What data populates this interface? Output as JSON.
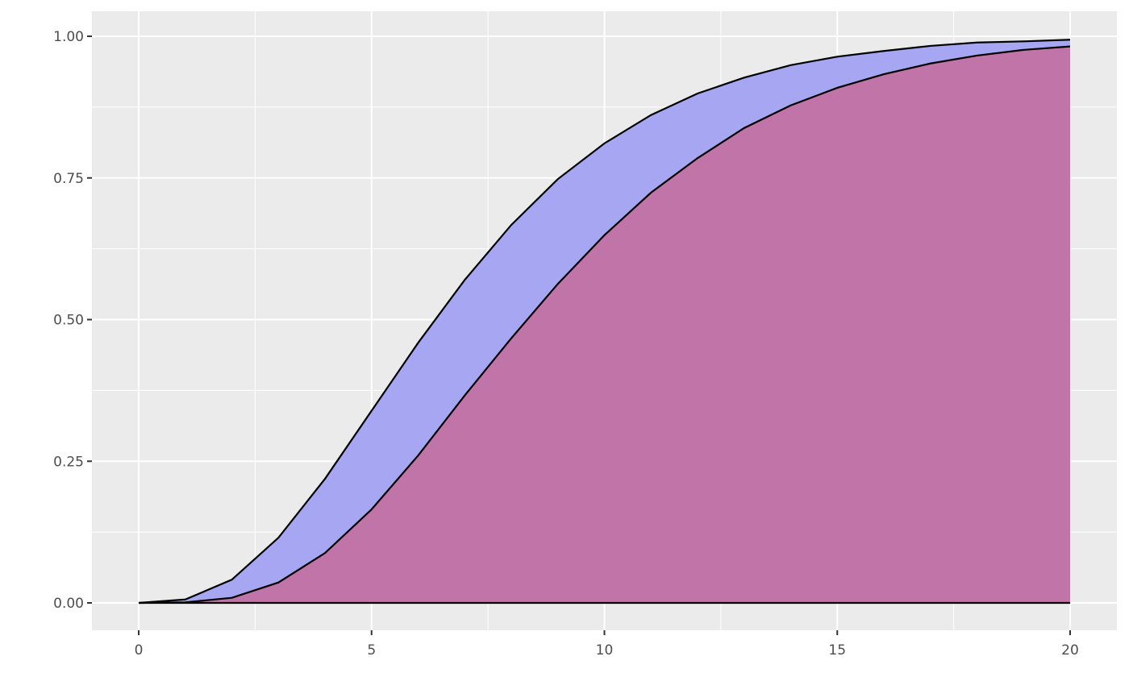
{
  "chart_data": {
    "type": "area",
    "title": "",
    "xlabel": "",
    "ylabel": "",
    "xlim": [
      -1,
      21
    ],
    "ylim": [
      -0.05,
      1.04
    ],
    "grid": true,
    "x_ticks": [
      "0",
      "5",
      "10",
      "15",
      "20"
    ],
    "y_ticks": [
      "0.00",
      "0.25",
      "0.50",
      "0.75",
      "1.00"
    ],
    "x": [
      0,
      1,
      2,
      3,
      4,
      5,
      6,
      7,
      8,
      9,
      10,
      11,
      12,
      13,
      14,
      15,
      16,
      17,
      18,
      19,
      20
    ],
    "series": [
      {
        "values": [
          0,
          0.006,
          0.041,
          0.115,
          0.219,
          0.339,
          0.459,
          0.57,
          0.667,
          0.748,
          0.811,
          0.861,
          0.899,
          0.927,
          0.949,
          0.964,
          0.974,
          0.983,
          0.989,
          0.991,
          0.994
        ],
        "color": "#a6a6f2"
      },
      {
        "values": [
          0,
          0.001,
          0.009,
          0.036,
          0.088,
          0.165,
          0.26,
          0.366,
          0.467,
          0.563,
          0.649,
          0.724,
          0.785,
          0.838,
          0.878,
          0.909,
          0.933,
          0.952,
          0.966,
          0.976,
          0.982
        ],
        "color": "#c174a8"
      }
    ],
    "panel_background": "#ebebeb",
    "line_color": "#000000"
  }
}
